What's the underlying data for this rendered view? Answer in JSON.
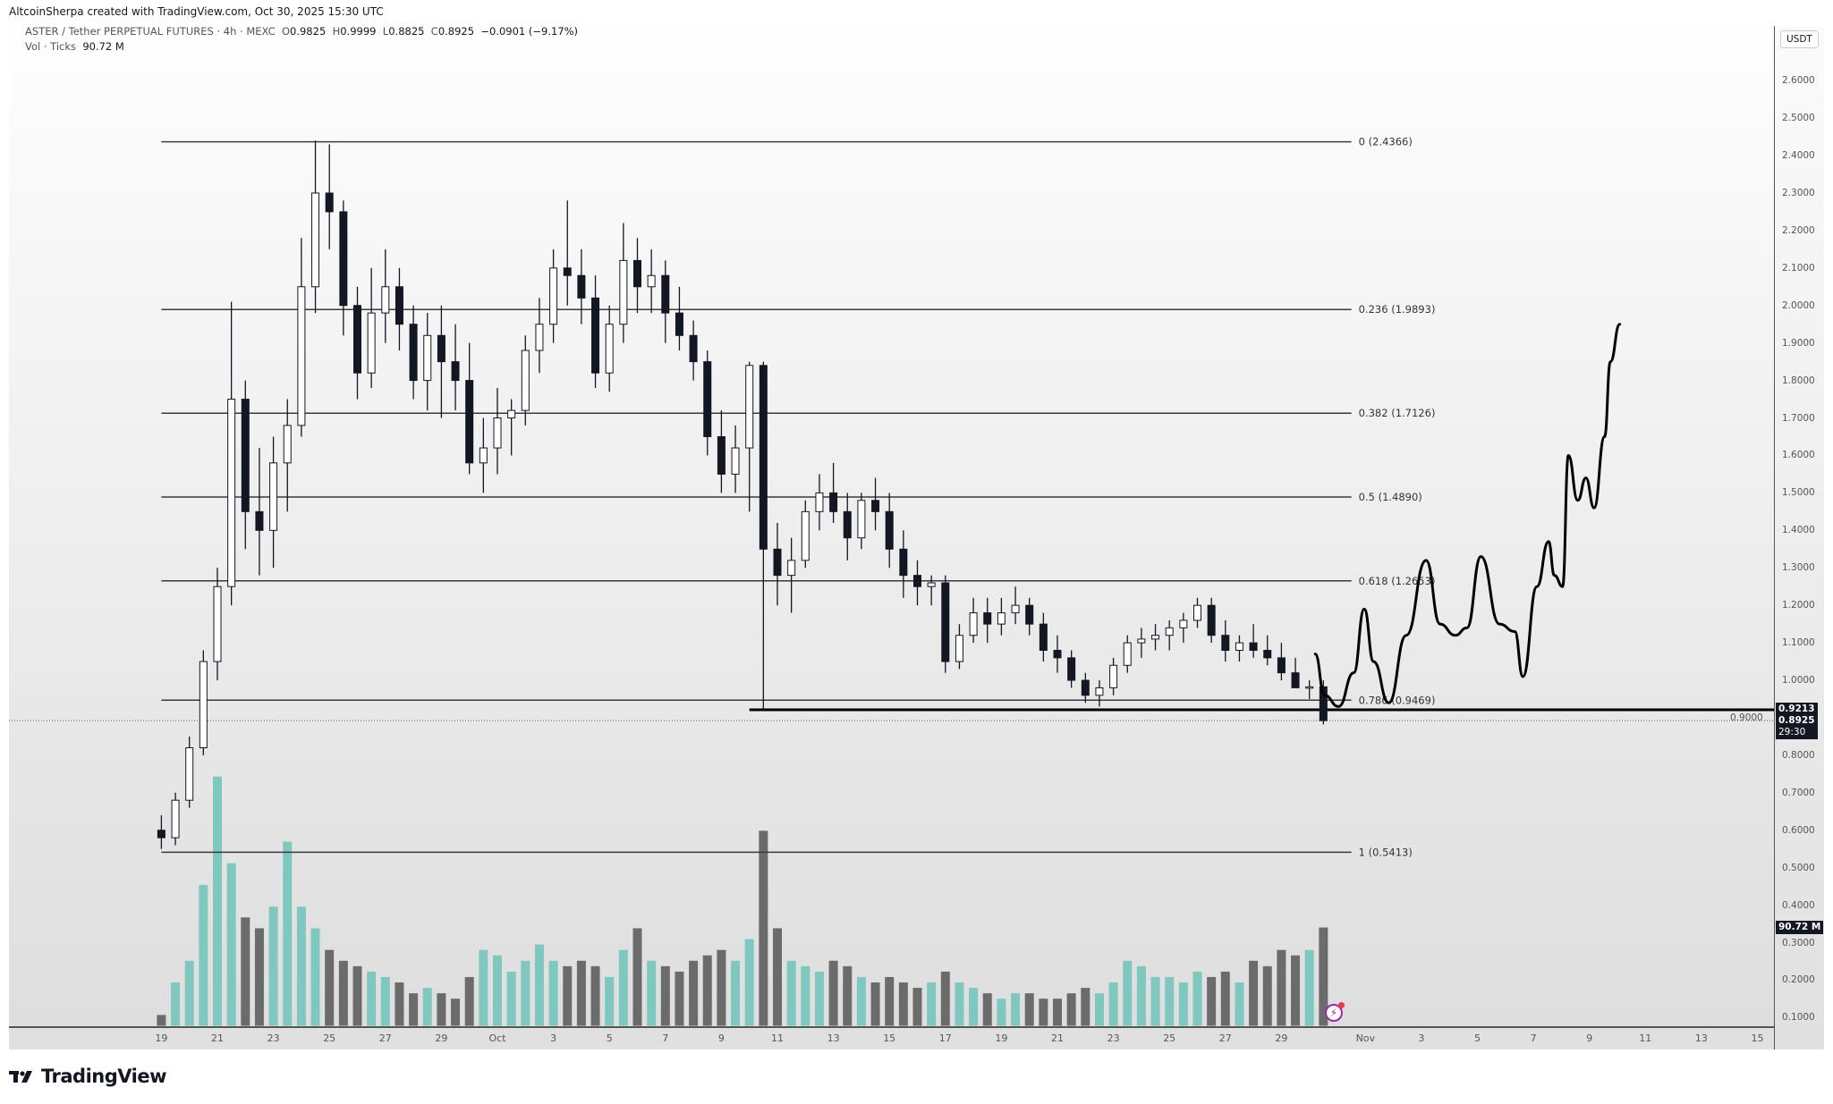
{
  "credit": "AltcoinSherpa created with TradingView.com, Oct 30, 2025 15:30 UTC",
  "legend": {
    "symbol": "ASTER / Tether PERPETUAL FUTURES · 4h · MEXC",
    "o_label": "O",
    "o": "0.9825",
    "h_label": "H",
    "h": "0.9999",
    "l_label": "L",
    "l": "0.8825",
    "c_label": "C",
    "c": "0.8925",
    "change": "−0.0901 (−9.17%)",
    "vol_label": "Vol · Ticks",
    "vol": "90.72 M"
  },
  "currency_button": "USDT",
  "price_tags": {
    "line": "0.9213",
    "last": "0.8925",
    "countdown": "29:30",
    "volume": "90.72 M"
  },
  "footer_logo": "TradingView",
  "colors": {
    "up_volume": "#7ec8c0",
    "down_volume": "#6b6b6b",
    "candle_body_up": "#ffffff",
    "candle_body_down": "#131722",
    "lines": "#3a3a3a",
    "alert_icon": "#9c27b0"
  },
  "icons": {
    "alert": "lightning-bolt-icon",
    "logo": "tradingview-logo-icon"
  },
  "chart_data": {
    "type": "candlestick",
    "interval": "4h",
    "ylim": [
      0.1,
      2.6
    ],
    "y_ticks": [
      "0.1000",
      "0.2000",
      "0.3000",
      "0.4000",
      "0.5000",
      "0.6000",
      "0.7000",
      "0.8000",
      "0.9000",
      "1.0000",
      "1.1000",
      "1.2000",
      "1.3000",
      "1.4000",
      "1.5000",
      "1.6000",
      "1.7000",
      "1.8000",
      "1.9000",
      "2.0000",
      "2.1000",
      "2.2000",
      "2.3000",
      "2.4000",
      "2.5000",
      "2.6000"
    ],
    "x_ticks": [
      {
        "label": "19",
        "date": "2025-09-19"
      },
      {
        "label": "21",
        "date": "2025-09-21"
      },
      {
        "label": "23",
        "date": "2025-09-23"
      },
      {
        "label": "25",
        "date": "2025-09-25"
      },
      {
        "label": "27",
        "date": "2025-09-27"
      },
      {
        "label": "29",
        "date": "2025-09-29"
      },
      {
        "label": "Oct",
        "date": "2025-10-01"
      },
      {
        "label": "3",
        "date": "2025-10-03"
      },
      {
        "label": "5",
        "date": "2025-10-05"
      },
      {
        "label": "7",
        "date": "2025-10-07"
      },
      {
        "label": "9",
        "date": "2025-10-09"
      },
      {
        "label": "11",
        "date": "2025-10-11"
      },
      {
        "label": "13",
        "date": "2025-10-13"
      },
      {
        "label": "15",
        "date": "2025-10-15"
      },
      {
        "label": "17",
        "date": "2025-10-17"
      },
      {
        "label": "19",
        "date": "2025-10-19"
      },
      {
        "label": "21",
        "date": "2025-10-21"
      },
      {
        "label": "23",
        "date": "2025-10-23"
      },
      {
        "label": "25",
        "date": "2025-10-25"
      },
      {
        "label": "27",
        "date": "2025-10-27"
      },
      {
        "label": "29",
        "date": "2025-10-29"
      },
      {
        "label": "Nov",
        "date": "2025-11-01"
      },
      {
        "label": "3",
        "date": "2025-11-03"
      },
      {
        "label": "5",
        "date": "2025-11-05"
      },
      {
        "label": "7",
        "date": "2025-11-07"
      },
      {
        "label": "9",
        "date": "2025-11-09"
      },
      {
        "label": "11",
        "date": "2025-11-11"
      },
      {
        "label": "13",
        "date": "2025-11-13"
      },
      {
        "label": "15",
        "date": "2025-11-15"
      }
    ],
    "candles_columns": [
      "time",
      "open",
      "high",
      "low",
      "close",
      "volume_M"
    ],
    "candles": [
      [
        "2025-09-19T00:00",
        0.6,
        0.64,
        0.55,
        0.58,
        10
      ],
      [
        "2025-09-19T12:00",
        0.58,
        0.7,
        0.56,
        0.68,
        40
      ],
      [
        "2025-09-20T00:00",
        0.68,
        0.85,
        0.66,
        0.82,
        60
      ],
      [
        "2025-09-20T12:00",
        0.82,
        1.08,
        0.8,
        1.05,
        130
      ],
      [
        "2025-09-21T00:00",
        1.05,
        1.3,
        1.0,
        1.25,
        230
      ],
      [
        "2025-09-21T12:00",
        1.25,
        2.01,
        1.2,
        1.75,
        150
      ],
      [
        "2025-09-22T00:00",
        1.75,
        1.8,
        1.35,
        1.45,
        100
      ],
      [
        "2025-09-22T12:00",
        1.45,
        1.62,
        1.28,
        1.4,
        90
      ],
      [
        "2025-09-23T00:00",
        1.4,
        1.65,
        1.3,
        1.58,
        110
      ],
      [
        "2025-09-23T12:00",
        1.58,
        1.75,
        1.45,
        1.68,
        170
      ],
      [
        "2025-09-24T00:00",
        1.68,
        2.18,
        1.65,
        2.05,
        110
      ],
      [
        "2025-09-24T12:00",
        2.05,
        2.44,
        1.98,
        2.3,
        90
      ],
      [
        "2025-09-25T00:00",
        2.3,
        2.43,
        2.15,
        2.25,
        70
      ],
      [
        "2025-09-25T12:00",
        2.25,
        2.28,
        1.92,
        2.0,
        60
      ],
      [
        "2025-09-26T00:00",
        2.0,
        2.05,
        1.75,
        1.82,
        55
      ],
      [
        "2025-09-26T12:00",
        1.82,
        2.1,
        1.78,
        1.98,
        50
      ],
      [
        "2025-09-27T00:00",
        1.98,
        2.15,
        1.9,
        2.05,
        45
      ],
      [
        "2025-09-27T12:00",
        2.05,
        2.1,
        1.88,
        1.95,
        40
      ],
      [
        "2025-09-28T00:00",
        1.95,
        2.0,
        1.75,
        1.8,
        30
      ],
      [
        "2025-09-28T12:00",
        1.8,
        1.98,
        1.72,
        1.92,
        35
      ],
      [
        "2025-09-29T00:00",
        1.92,
        2.0,
        1.7,
        1.85,
        30
      ],
      [
        "2025-09-29T12:00",
        1.85,
        1.95,
        1.72,
        1.8,
        25
      ],
      [
        "2025-09-30T00:00",
        1.8,
        1.9,
        1.55,
        1.58,
        45
      ],
      [
        "2025-09-30T12:00",
        1.58,
        1.7,
        1.5,
        1.62,
        70
      ],
      [
        "2025-10-01T00:00",
        1.62,
        1.78,
        1.55,
        1.7,
        65
      ],
      [
        "2025-10-01T12:00",
        1.7,
        1.75,
        1.6,
        1.72,
        50
      ],
      [
        "2025-10-02T00:00",
        1.72,
        1.92,
        1.68,
        1.88,
        60
      ],
      [
        "2025-10-02T12:00",
        1.88,
        2.02,
        1.82,
        1.95,
        75
      ],
      [
        "2025-10-03T00:00",
        1.95,
        2.15,
        1.9,
        2.1,
        60
      ],
      [
        "2025-10-03T12:00",
        2.1,
        2.28,
        2.0,
        2.08,
        55
      ],
      [
        "2025-10-04T00:00",
        2.08,
        2.15,
        1.95,
        2.02,
        60
      ],
      [
        "2025-10-04T12:00",
        2.02,
        2.08,
        1.78,
        1.82,
        55
      ],
      [
        "2025-10-05T00:00",
        1.82,
        2.0,
        1.77,
        1.95,
        45
      ],
      [
        "2025-10-05T12:00",
        1.95,
        2.22,
        1.9,
        2.12,
        70
      ],
      [
        "2025-10-06T00:00",
        2.12,
        2.18,
        1.98,
        2.05,
        90
      ],
      [
        "2025-10-06T12:00",
        2.05,
        2.15,
        1.98,
        2.08,
        60
      ],
      [
        "2025-10-07T00:00",
        2.08,
        2.12,
        1.9,
        1.98,
        55
      ],
      [
        "2025-10-07T12:00",
        1.98,
        2.05,
        1.88,
        1.92,
        50
      ],
      [
        "2025-10-08T00:00",
        1.92,
        1.96,
        1.8,
        1.85,
        60
      ],
      [
        "2025-10-08T12:00",
        1.85,
        1.88,
        1.6,
        1.65,
        65
      ],
      [
        "2025-10-09T00:00",
        1.65,
        1.72,
        1.5,
        1.55,
        70
      ],
      [
        "2025-10-09T12:00",
        1.55,
        1.68,
        1.5,
        1.62,
        60
      ],
      [
        "2025-10-10T00:00",
        1.62,
        1.85,
        1.45,
        1.84,
        80
      ],
      [
        "2025-10-10T12:00",
        1.84,
        1.85,
        0.92,
        1.35,
        180
      ],
      [
        "2025-10-11T00:00",
        1.35,
        1.42,
        1.2,
        1.28,
        90
      ],
      [
        "2025-10-11T12:00",
        1.28,
        1.38,
        1.18,
        1.32,
        60
      ],
      [
        "2025-10-12T00:00",
        1.32,
        1.48,
        1.3,
        1.45,
        55
      ],
      [
        "2025-10-12T12:00",
        1.45,
        1.55,
        1.4,
        1.5,
        50
      ],
      [
        "2025-10-13T00:00",
        1.5,
        1.58,
        1.42,
        1.45,
        60
      ],
      [
        "2025-10-13T12:00",
        1.45,
        1.5,
        1.32,
        1.38,
        55
      ],
      [
        "2025-10-14T00:00",
        1.38,
        1.5,
        1.35,
        1.48,
        45
      ],
      [
        "2025-10-14T12:00",
        1.48,
        1.54,
        1.4,
        1.45,
        40
      ],
      [
        "2025-10-15T00:00",
        1.45,
        1.5,
        1.3,
        1.35,
        45
      ],
      [
        "2025-10-15T12:00",
        1.35,
        1.4,
        1.22,
        1.28,
        40
      ],
      [
        "2025-10-16T00:00",
        1.28,
        1.32,
        1.2,
        1.25,
        35
      ],
      [
        "2025-10-16T12:00",
        1.25,
        1.28,
        1.2,
        1.26,
        40
      ],
      [
        "2025-10-17T00:00",
        1.26,
        1.28,
        1.02,
        1.05,
        50
      ],
      [
        "2025-10-17T12:00",
        1.05,
        1.15,
        1.03,
        1.12,
        40
      ],
      [
        "2025-10-18T00:00",
        1.12,
        1.22,
        1.1,
        1.18,
        35
      ],
      [
        "2025-10-18T12:00",
        1.18,
        1.22,
        1.1,
        1.15,
        30
      ],
      [
        "2025-10-19T00:00",
        1.15,
        1.22,
        1.12,
        1.18,
        25
      ],
      [
        "2025-10-19T12:00",
        1.18,
        1.25,
        1.15,
        1.2,
        30
      ],
      [
        "2025-10-20T00:00",
        1.2,
        1.22,
        1.12,
        1.15,
        30
      ],
      [
        "2025-10-20T12:00",
        1.15,
        1.18,
        1.05,
        1.08,
        25
      ],
      [
        "2025-10-21T00:00",
        1.08,
        1.12,
        1.02,
        1.06,
        25
      ],
      [
        "2025-10-21T12:00",
        1.06,
        1.08,
        0.98,
        1.0,
        30
      ],
      [
        "2025-10-22T00:00",
        1.0,
        1.02,
        0.94,
        0.96,
        35
      ],
      [
        "2025-10-22T12:00",
        0.96,
        1.0,
        0.93,
        0.98,
        30
      ],
      [
        "2025-10-23T00:00",
        0.98,
        1.06,
        0.96,
        1.04,
        40
      ],
      [
        "2025-10-23T12:00",
        1.04,
        1.12,
        1.02,
        1.1,
        60
      ],
      [
        "2025-10-24T00:00",
        1.1,
        1.14,
        1.06,
        1.11,
        55
      ],
      [
        "2025-10-24T12:00",
        1.11,
        1.15,
        1.08,
        1.12,
        45
      ],
      [
        "2025-10-25T00:00",
        1.12,
        1.16,
        1.08,
        1.14,
        45
      ],
      [
        "2025-10-25T12:00",
        1.14,
        1.18,
        1.1,
        1.16,
        40
      ],
      [
        "2025-10-26T00:00",
        1.16,
        1.22,
        1.14,
        1.2,
        50
      ],
      [
        "2025-10-26T12:00",
        1.2,
        1.22,
        1.1,
        1.12,
        45
      ],
      [
        "2025-10-27T00:00",
        1.12,
        1.16,
        1.05,
        1.08,
        50
      ],
      [
        "2025-10-27T12:00",
        1.08,
        1.12,
        1.05,
        1.1,
        40
      ],
      [
        "2025-10-28T00:00",
        1.1,
        1.15,
        1.06,
        1.08,
        60
      ],
      [
        "2025-10-28T12:00",
        1.08,
        1.12,
        1.04,
        1.06,
        55
      ],
      [
        "2025-10-29T00:00",
        1.06,
        1.1,
        1.0,
        1.02,
        70
      ],
      [
        "2025-10-29T12:00",
        1.02,
        1.06,
        0.98,
        0.98,
        65
      ],
      [
        "2025-10-30T00:00",
        0.98,
        1.0,
        0.95,
        0.9825,
        70
      ],
      [
        "2025-10-30T12:00",
        0.9825,
        0.9999,
        0.8825,
        0.8925,
        90.72
      ]
    ],
    "fib_retracement": {
      "start": "2025-09-19",
      "end": "2025-10-31T12:00",
      "levels": [
        {
          "label": "0 (2.4366)",
          "price": 2.4366
        },
        {
          "label": "0.236 (1.9893)",
          "price": 1.9893
        },
        {
          "label": "0.382 (1.7126)",
          "price": 1.7126
        },
        {
          "label": "0.5 (1.4890)",
          "price": 1.489
        },
        {
          "label": "0.618 (1.2653)",
          "price": 1.2653
        },
        {
          "label": "0.786 (0.9469)",
          "price": 0.9469
        },
        {
          "label": "1 (0.5413)",
          "price": 0.5413
        }
      ]
    },
    "horizontal_line": {
      "price": 0.9213,
      "start": "2025-10-10T00:00"
    },
    "last_price_line": 0.8925,
    "projection_path": [
      [
        "2025-10-30T05:00",
        1.07
      ],
      [
        "2025-10-30T13:00",
        0.96
      ],
      [
        "2025-10-31T01:00",
        0.93
      ],
      [
        "2025-10-31T14:00",
        1.02
      ],
      [
        "2025-10-31T23:00",
        1.19
      ],
      [
        "2025-11-01T07:00",
        1.05
      ],
      [
        "2025-11-01T20:00",
        0.94
      ],
      [
        "2025-11-02T11:00",
        1.12
      ],
      [
        "2025-11-03T04:00",
        1.32
      ],
      [
        "2025-11-03T16:00",
        1.15
      ],
      [
        "2025-11-04T05:00",
        1.12
      ],
      [
        "2025-11-04T15:00",
        1.14
      ],
      [
        "2025-11-05T03:00",
        1.33
      ],
      [
        "2025-11-05T19:00",
        1.15
      ],
      [
        "2025-11-06T08:00",
        1.13
      ],
      [
        "2025-11-06T15:00",
        1.01
      ],
      [
        "2025-11-07T03:00",
        1.25
      ],
      [
        "2025-11-07T13:00",
        1.37
      ],
      [
        "2025-11-07T18:00",
        1.28
      ],
      [
        "2025-11-08T01:00",
        1.25
      ],
      [
        "2025-11-08T06:00",
        1.6
      ],
      [
        "2025-11-08T14:00",
        1.48
      ],
      [
        "2025-11-08T21:00",
        1.54
      ],
      [
        "2025-11-09T04:00",
        1.46
      ],
      [
        "2025-11-09T13:00",
        1.65
      ],
      [
        "2025-11-09T18:00",
        1.85
      ],
      [
        "2025-11-10T02:00",
        1.95
      ]
    ]
  }
}
